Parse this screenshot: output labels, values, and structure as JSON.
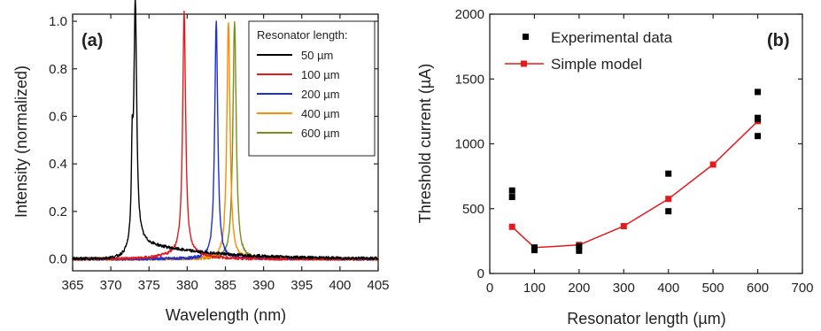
{
  "chart_data": [
    {
      "type": "line",
      "panel_label": "(a)",
      "xlabel": "Wavelength (nm)",
      "ylabel": "Intensity (normalized)",
      "xlim": [
        365,
        405
      ],
      "ylim": [
        -0.05,
        1.03
      ],
      "xticks": [
        "365",
        "370",
        "375",
        "380",
        "385",
        "390",
        "395",
        "400",
        "405"
      ],
      "yticks": [
        "0.0",
        "0.2",
        "0.4",
        "0.6",
        "0.8",
        "1.0"
      ],
      "legend_title": "Resonator length:",
      "legend_position": "top-right",
      "series": [
        {
          "name": "50 µm",
          "color": "#000000",
          "peak_nm": 373.2,
          "peak": 1.0
        },
        {
          "name": "100 µm",
          "color": "#e41a1c",
          "peak_nm": 379.6,
          "peak": 1.0
        },
        {
          "name": "200 µm",
          "color": "#1f2fd6",
          "peak_nm": 383.8,
          "peak": 1.0
        },
        {
          "name": "400 µm",
          "color": "#ff8c00",
          "peak_nm": 385.4,
          "peak": 1.0
        },
        {
          "name": "600 µm",
          "color": "#7a8f1a",
          "peak_nm": 386.2,
          "peak": 1.0
        }
      ]
    },
    {
      "type": "scatter",
      "panel_label": "(b)",
      "xlabel": "Resonator length (µm)",
      "ylabel": "Threshold current (µA)",
      "xlim": [
        0,
        700
      ],
      "ylim": [
        0,
        2000
      ],
      "xticks": [
        "0",
        "100",
        "200",
        "300",
        "400",
        "500",
        "600",
        "700"
      ],
      "yticks": [
        "0",
        "500",
        "1000",
        "1500",
        "2000"
      ],
      "legend_position": "top-left",
      "series": [
        {
          "name": "Experimental data",
          "color": "#000000",
          "x": [
            50,
            50,
            100,
            100,
            200,
            200,
            400,
            400,
            600,
            600,
            600,
            600
          ],
          "y": [
            640,
            590,
            200,
            180,
            210,
            175,
            770,
            480,
            1400,
            1200,
            1190,
            1060
          ]
        },
        {
          "name": "Simple model",
          "color": "#e41a1c",
          "x": [
            50,
            100,
            200,
            300,
            400,
            500,
            600
          ],
          "y": [
            360,
            200,
            220,
            365,
            575,
            840,
            1175
          ]
        }
      ]
    }
  ]
}
